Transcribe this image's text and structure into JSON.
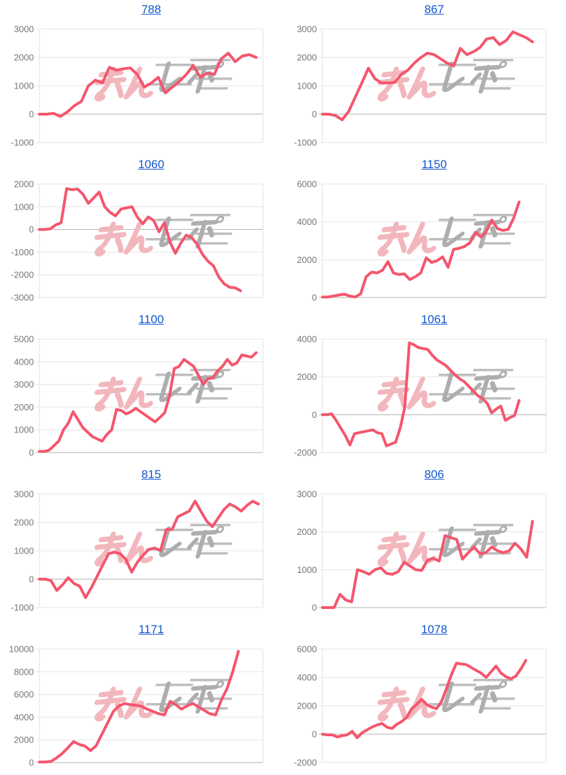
{
  "page": {
    "background": "#ffffff",
    "grid": {
      "columns": 2,
      "rows": 5
    }
  },
  "colors": {
    "line": "#f4566d",
    "title_link": "#1155cc",
    "tick_label": "#757575",
    "gridline": "#e6e6e6",
    "baseline": "#b0b0b0",
    "plot_border": "#e2e2e2",
    "watermark_pink": "#f2b4ba",
    "watermark_gray": "#aaaaaa"
  },
  "watermark": {
    "pink_text": "みん",
    "gray_text": "レポ"
  },
  "chart_data": [
    {
      "title": "788",
      "type": "line",
      "ylim": [
        -1000,
        3000
      ],
      "yticks": [
        3000,
        2000,
        1000,
        0,
        -1000
      ],
      "x_span": 0.97,
      "grid": true,
      "legend": "none",
      "values": [
        0,
        0,
        30,
        -80,
        80,
        300,
        450,
        1000,
        1200,
        1100,
        1650,
        1550,
        1600,
        1630,
        1400,
        950,
        1100,
        1300,
        750,
        950,
        1150,
        1400,
        1720,
        1300,
        1450,
        1400,
        1950,
        2150,
        1850,
        2050,
        2100,
        2000
      ]
    },
    {
      "title": "867",
      "type": "line",
      "ylim": [
        -1000,
        3000
      ],
      "yticks": [
        3000,
        2000,
        1000,
        0,
        -1000
      ],
      "x_span": 0.94,
      "grid": true,
      "legend": "none",
      "values": [
        0,
        0,
        -50,
        -200,
        100,
        600,
        1100,
        1620,
        1250,
        1100,
        1100,
        1120,
        1400,
        1550,
        1800,
        2000,
        2150,
        2100,
        1950,
        1800,
        1700,
        2320,
        2100,
        2200,
        2350,
        2650,
        2700,
        2450,
        2600,
        2900,
        2800,
        2700,
        2550
      ]
    },
    {
      "title": "1060",
      "type": "line",
      "ylim": [
        -3000,
        2000
      ],
      "yticks": [
        2000,
        1000,
        0,
        -1000,
        -2000,
        -3000
      ],
      "x_span": 0.9,
      "grid": true,
      "legend": "none",
      "values": [
        0,
        0,
        30,
        200,
        300,
        1800,
        1750,
        1780,
        1550,
        1150,
        1400,
        1650,
        1000,
        750,
        600,
        900,
        950,
        1000,
        550,
        250,
        550,
        400,
        -100,
        300,
        -550,
        -1050,
        -600,
        -250,
        -350,
        -650,
        -1100,
        -1400,
        -1600,
        -2100,
        -2400,
        -2550,
        -2570,
        -2700
      ]
    },
    {
      "title": "1150",
      "type": "line",
      "ylim": [
        0,
        6000
      ],
      "yticks": [
        6000,
        4000,
        2000,
        0
      ],
      "x_span": 0.88,
      "grid": true,
      "legend": "none",
      "values": [
        30,
        30,
        80,
        130,
        180,
        80,
        30,
        200,
        1100,
        1350,
        1300,
        1450,
        1900,
        1300,
        1220,
        1250,
        950,
        1100,
        1300,
        2100,
        1850,
        1950,
        2150,
        1600,
        2550,
        2600,
        2700,
        2900,
        3450,
        3200,
        3500,
        4100,
        3650,
        3550,
        3600,
        4200,
        5050
      ]
    },
    {
      "title": "1100",
      "type": "line",
      "ylim": [
        0,
        5000
      ],
      "yticks": [
        5000,
        4000,
        3000,
        2000,
        1000,
        0
      ],
      "x_span": 0.97,
      "grid": true,
      "legend": "none",
      "values": [
        50,
        50,
        100,
        300,
        500,
        1000,
        1300,
        1800,
        1450,
        1100,
        900,
        700,
        600,
        500,
        800,
        1000,
        1900,
        1850,
        1700,
        1800,
        1950,
        1800,
        1650,
        1500,
        1350,
        1550,
        1750,
        2500,
        3700,
        3800,
        4100,
        3950,
        3800,
        3400,
        3000,
        3250,
        3300,
        3600,
        3800,
        4100,
        3850,
        3950,
        4300,
        4250,
        4200,
        4400
      ]
    },
    {
      "title": "1061",
      "type": "line",
      "ylim": [
        -2000,
        4000
      ],
      "yticks": [
        4000,
        2000,
        0,
        -2000
      ],
      "x_span": 0.88,
      "grid": true,
      "legend": "none",
      "values": [
        0,
        0,
        50,
        -300,
        -700,
        -1100,
        -1600,
        -1000,
        -950,
        -900,
        -850,
        -800,
        -950,
        -1000,
        -1650,
        -1550,
        -1450,
        -700,
        400,
        3800,
        3700,
        3550,
        3500,
        3450,
        3150,
        2900,
        2750,
        2600,
        2350,
        2100,
        1900,
        1750,
        1500,
        1250,
        1000,
        850,
        600,
        100,
        300,
        450,
        -300,
        -150,
        -50,
        750
      ]
    },
    {
      "title": "815",
      "type": "line",
      "ylim": [
        -1000,
        3000
      ],
      "yticks": [
        3000,
        2000,
        1000,
        0,
        -1000
      ],
      "x_span": 0.98,
      "grid": true,
      "legend": "none",
      "values": [
        0,
        0,
        -50,
        -400,
        -200,
        50,
        -150,
        -250,
        -650,
        -300,
        100,
        500,
        900,
        950,
        900,
        700,
        250,
        600,
        850,
        1050,
        1100,
        1000,
        1750,
        1750,
        2200,
        2300,
        2400,
        2750,
        2400,
        2050,
        1850,
        2150,
        2450,
        2650,
        2550,
        2400,
        2600,
        2750,
        2650
      ]
    },
    {
      "title": "806",
      "type": "line",
      "ylim": [
        0,
        3000
      ],
      "yticks": [
        3000,
        2000,
        1000,
        0
      ],
      "x_span": 0.94,
      "grid": true,
      "legend": "none",
      "values": [
        0,
        0,
        0,
        350,
        200,
        150,
        1000,
        950,
        880,
        1000,
        1050,
        900,
        880,
        950,
        1200,
        1100,
        1000,
        980,
        1250,
        1300,
        1230,
        1900,
        1850,
        1800,
        1280,
        1450,
        1600,
        1420,
        1450,
        1600,
        1500,
        1450,
        1500,
        1700,
        1550,
        1330,
        2280
      ]
    },
    {
      "title": "1171",
      "type": "line",
      "ylim": [
        0,
        10000
      ],
      "yticks": [
        10000,
        8000,
        6000,
        4000,
        2000,
        0
      ],
      "x_span": 0.89,
      "grid": true,
      "legend": "none",
      "values": [
        50,
        50,
        100,
        400,
        800,
        1300,
        1850,
        1600,
        1450,
        1050,
        1500,
        2500,
        3500,
        4500,
        5000,
        5200,
        5100,
        5050,
        4950,
        4700,
        4500,
        4300,
        4200,
        5400,
        5100,
        4700,
        5000,
        5200,
        4900,
        4600,
        4300,
        4200,
        5500,
        6500,
        8000,
        9800
      ]
    },
    {
      "title": "1078",
      "type": "line",
      "ylim": [
        -2000,
        6000
      ],
      "yticks": [
        6000,
        4000,
        2000,
        0,
        -2000
      ],
      "x_span": 0.91,
      "grid": true,
      "legend": "none",
      "values": [
        0,
        -50,
        -50,
        -200,
        -100,
        -50,
        200,
        -250,
        100,
        300,
        500,
        650,
        750,
        500,
        400,
        700,
        900,
        1200,
        1800,
        2100,
        2450,
        2100,
        1900,
        1800,
        2300,
        3200,
        4200,
        5000,
        4950,
        4900,
        4700,
        4500,
        4300,
        4000,
        4400,
        4800,
        4300,
        4050,
        3900,
        4100,
        4600,
        5200
      ]
    }
  ]
}
